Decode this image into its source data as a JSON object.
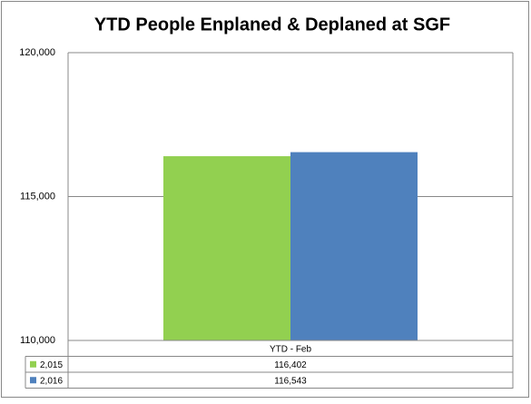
{
  "chart_data": {
    "type": "bar",
    "title": "YTD People Enplaned & Deplaned at SGF",
    "categories": [
      "YTD - Feb"
    ],
    "series": [
      {
        "name": "2,015",
        "color": "#92d050",
        "values": [
          116402
        ],
        "value_labels": [
          "116,402"
        ]
      },
      {
        "name": "2,016",
        "color": "#4f81bd",
        "values": [
          116543
        ],
        "value_labels": [
          "116,543"
        ]
      }
    ],
    "ylim": [
      110000,
      120000
    ],
    "yticks": [
      {
        "value": 110000,
        "label": "110,000"
      },
      {
        "value": 115000,
        "label": "115,000"
      },
      {
        "value": 120000,
        "label": "120,000"
      }
    ],
    "grid": true
  }
}
